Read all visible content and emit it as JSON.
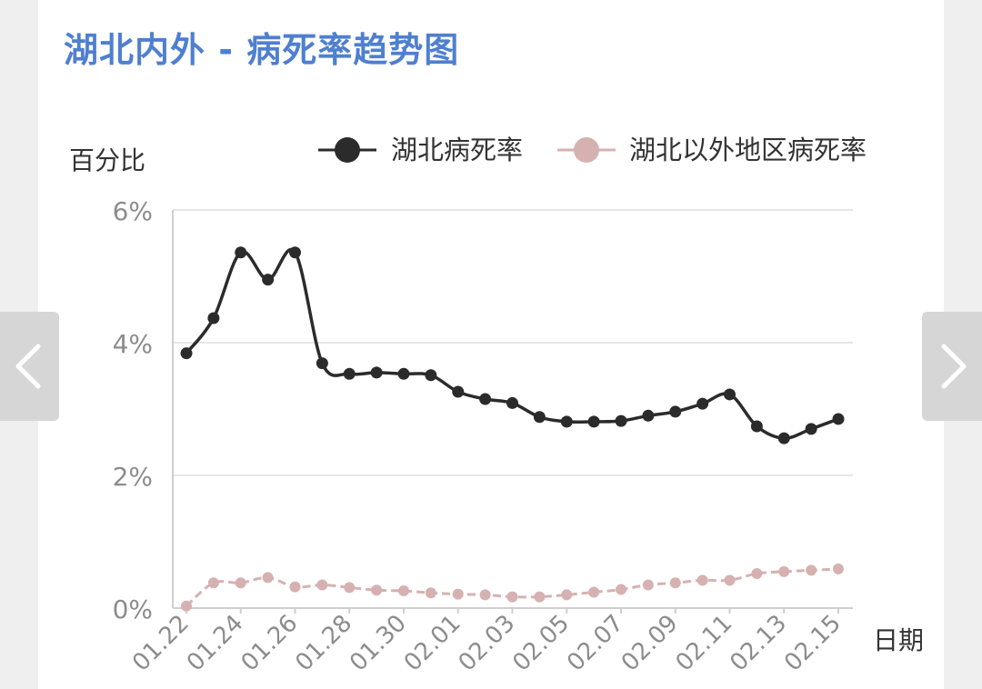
{
  "title": "湖北内外 - 病死率趋势图",
  "nav": {
    "prev_icon": "chevron-left-icon",
    "next_icon": "chevron-right-icon"
  },
  "colors": {
    "title": "#4f7fd0",
    "hubei": "#2b2b2b",
    "outside": "#d6b1b1",
    "grid": "#e6e6e6",
    "axis_text": "#8c8c8c"
  },
  "chart_data": {
    "type": "line",
    "ylabel": "百分比",
    "xlabel": "日期",
    "ylim": [
      0,
      6
    ],
    "yticks": [
      "0%",
      "2%",
      "4%",
      "6%"
    ],
    "x": [
      "01.22",
      "01.23",
      "01.24",
      "01.25",
      "01.26",
      "01.27",
      "01.28",
      "01.29",
      "01.30",
      "01.31",
      "02.01",
      "02.02",
      "02.03",
      "02.04",
      "02.05",
      "02.06",
      "02.07",
      "02.08",
      "02.09",
      "02.10",
      "02.11",
      "02.12",
      "02.13",
      "02.14",
      "02.15"
    ],
    "xtick_labels": [
      "01.22",
      "01.24",
      "01.26",
      "01.28",
      "01.30",
      "02.01",
      "02.03",
      "02.05",
      "02.07",
      "02.09",
      "02.11",
      "02.13",
      "02.15"
    ],
    "grid": true,
    "legend_position": "top",
    "series": [
      {
        "name": "湖北病死率",
        "color": "#2b2b2b",
        "values": [
          3.84,
          4.37,
          5.36,
          4.95,
          5.36,
          3.69,
          3.53,
          3.55,
          3.53,
          3.51,
          3.26,
          3.15,
          3.09,
          2.88,
          2.81,
          2.81,
          2.82,
          2.9,
          2.96,
          3.08,
          3.22,
          2.74,
          2.56,
          2.7,
          2.85
        ]
      },
      {
        "name": "湖北以外地区病死率",
        "color": "#d6b1b1",
        "values": [
          0.03,
          0.38,
          0.38,
          0.46,
          0.32,
          0.35,
          0.31,
          0.27,
          0.26,
          0.23,
          0.21,
          0.2,
          0.17,
          0.17,
          0.2,
          0.24,
          0.28,
          0.35,
          0.38,
          0.42,
          0.42,
          0.52,
          0.55,
          0.57,
          0.59
        ]
      }
    ]
  }
}
